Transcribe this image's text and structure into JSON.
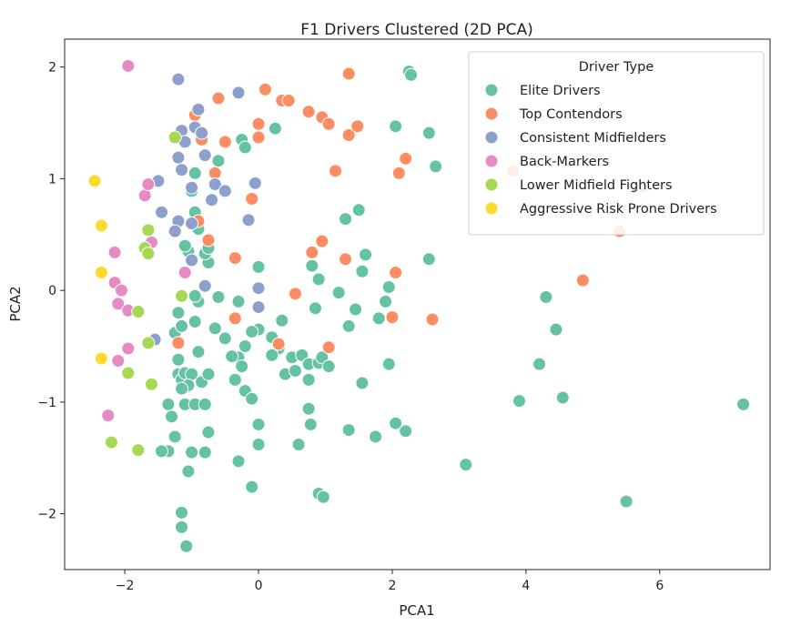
{
  "chart_data": {
    "type": "scatter",
    "title": "F1 Drivers Clustered (2D PCA)",
    "xlabel": "PCA1",
    "ylabel": "PCA2",
    "xlim": [
      -2.9,
      7.65
    ],
    "ylim": [
      -2.5,
      2.25
    ],
    "xticks": [
      -2,
      0,
      2,
      4,
      6
    ],
    "yticks": [
      -2,
      -1,
      0,
      1,
      2
    ],
    "xtick_labels": [
      "−2",
      "0",
      "2",
      "4",
      "6"
    ],
    "ytick_labels": [
      "−2",
      "−1",
      "0",
      "1",
      "2"
    ],
    "grid": false,
    "legend": {
      "title": "Driver Type",
      "placement": "top-right"
    },
    "series": [
      {
        "name": "Elite Drivers",
        "color": "#66c2a5",
        "points": [
          [
            2.25,
            1.96
          ],
          [
            2.28,
            1.93
          ],
          [
            2.55,
            1.41
          ],
          [
            2.65,
            1.11
          ],
          [
            2.05,
            1.47
          ],
          [
            0.25,
            1.45
          ],
          [
            -0.25,
            1.35
          ],
          [
            -0.2,
            1.28
          ],
          [
            -0.6,
            1.16
          ],
          [
            1.3,
            0.64
          ],
          [
            1.5,
            0.72
          ],
          [
            1.6,
            0.32
          ],
          [
            1.55,
            0.17
          ],
          [
            2.55,
            0.28
          ],
          [
            0.0,
            0.21
          ],
          [
            0.8,
            0.22
          ],
          [
            0.9,
            0.1
          ],
          [
            1.2,
            -0.02
          ],
          [
            1.95,
            0.03
          ],
          [
            1.9,
            -0.1
          ],
          [
            0.85,
            -0.16
          ],
          [
            1.45,
            -0.17
          ],
          [
            1.35,
            -0.32
          ],
          [
            1.8,
            -0.25
          ],
          [
            4.3,
            -0.06
          ],
          [
            4.45,
            -0.35
          ],
          [
            4.2,
            -0.66
          ],
          [
            -0.3,
            -0.1
          ],
          [
            -0.6,
            -0.06
          ],
          [
            0.0,
            -0.35
          ],
          [
            -0.1,
            -0.37
          ],
          [
            0.2,
            -0.42
          ],
          [
            0.35,
            -0.27
          ],
          [
            0.3,
            -0.52
          ],
          [
            0.2,
            -0.58
          ],
          [
            0.5,
            -0.6
          ],
          [
            0.65,
            -0.58
          ],
          [
            0.75,
            -0.66
          ],
          [
            0.4,
            -0.75
          ],
          [
            0.55,
            -0.72
          ],
          [
            0.9,
            -0.65
          ],
          [
            0.95,
            -0.6
          ],
          [
            1.05,
            -0.68
          ],
          [
            0.75,
            -0.8
          ],
          [
            -0.2,
            -0.5
          ],
          [
            -0.3,
            -0.6
          ],
          [
            -0.4,
            -0.59
          ],
          [
            -0.5,
            -0.43
          ],
          [
            -0.65,
            -0.34
          ],
          [
            -0.35,
            -0.8
          ],
          [
            -0.25,
            -0.68
          ],
          [
            -0.2,
            -0.9
          ],
          [
            -0.1,
            -0.97
          ],
          [
            0.75,
            -1.06
          ],
          [
            0.78,
            -1.2
          ],
          [
            1.35,
            -1.25
          ],
          [
            1.75,
            -1.31
          ],
          [
            2.05,
            -1.19
          ],
          [
            2.2,
            -1.26
          ],
          [
            1.55,
            -0.83
          ],
          [
            1.95,
            -0.66
          ],
          [
            -0.0,
            -1.2
          ],
          [
            0.0,
            -1.38
          ],
          [
            0.6,
            -1.38
          ],
          [
            -0.3,
            -1.53
          ],
          [
            -0.1,
            -1.76
          ],
          [
            0.9,
            -1.82
          ],
          [
            0.97,
            -1.85
          ],
          [
            3.1,
            -1.56
          ],
          [
            3.9,
            -0.99
          ],
          [
            4.55,
            -0.96
          ],
          [
            5.5,
            -1.89
          ],
          [
            7.25,
            -1.02
          ],
          [
            5.75,
            0.93
          ],
          [
            -1.25,
            -0.38
          ],
          [
            -1.2,
            -0.62
          ],
          [
            -1.2,
            -0.75
          ],
          [
            -1.15,
            -0.8
          ],
          [
            -1.1,
            -0.74
          ],
          [
            -1.0,
            -0.75
          ],
          [
            -1.05,
            -0.85
          ],
          [
            -1.15,
            -0.88
          ],
          [
            -0.85,
            -0.82
          ],
          [
            -0.75,
            -0.75
          ],
          [
            -0.9,
            -0.55
          ],
          [
            -0.95,
            -0.28
          ],
          [
            -1.15,
            -0.32
          ],
          [
            -1.2,
            -0.2
          ],
          [
            -0.9,
            -0.1
          ],
          [
            -0.95,
            -0.05
          ],
          [
            -1.35,
            -1.02
          ],
          [
            -1.3,
            -1.13
          ],
          [
            -1.1,
            -1.02
          ],
          [
            -0.95,
            -1.02
          ],
          [
            -0.8,
            -1.02
          ],
          [
            -1.25,
            -1.31
          ],
          [
            -1.0,
            -1.45
          ],
          [
            -1.35,
            -1.44
          ],
          [
            -1.45,
            -1.44
          ],
          [
            -0.8,
            -1.45
          ],
          [
            -0.75,
            -1.27
          ],
          [
            -1.05,
            -1.62
          ],
          [
            -1.15,
            -1.99
          ],
          [
            -1.15,
            -2.12
          ],
          [
            -1.08,
            -2.29
          ],
          [
            -0.75,
            0.25
          ],
          [
            -0.8,
            0.33
          ],
          [
            -0.75,
            0.38
          ],
          [
            -1.05,
            0.35
          ],
          [
            -1.1,
            0.4
          ],
          [
            -0.9,
            0.55
          ],
          [
            -0.95,
            0.7
          ],
          [
            -1.0,
            0.89
          ],
          [
            -0.95,
            1.05
          ]
        ]
      },
      {
        "name": "Top Contendors",
        "color": "#fc8d62",
        "points": [
          [
            0.1,
            1.8
          ],
          [
            -0.6,
            1.72
          ],
          [
            0.35,
            1.7
          ],
          [
            0.45,
            1.7
          ],
          [
            0.75,
            1.6
          ],
          [
            0.95,
            1.55
          ],
          [
            1.05,
            1.49
          ],
          [
            1.35,
            1.39
          ],
          [
            1.48,
            1.47
          ],
          [
            1.35,
            1.94
          ],
          [
            -0.95,
            1.57
          ],
          [
            -0.85,
            1.35
          ],
          [
            -0.5,
            1.33
          ],
          [
            0.0,
            1.49
          ],
          [
            0.0,
            1.37
          ],
          [
            -0.65,
            1.05
          ],
          [
            -0.9,
            0.62
          ],
          [
            -0.75,
            0.45
          ],
          [
            -0.1,
            0.82
          ],
          [
            -0.35,
            0.29
          ],
          [
            1.15,
            1.07
          ],
          [
            2.1,
            1.05
          ],
          [
            2.2,
            1.18
          ],
          [
            0.95,
            0.44
          ],
          [
            0.8,
            0.34
          ],
          [
            1.3,
            0.28
          ],
          [
            2.05,
            0.16
          ],
          [
            2.0,
            -0.24
          ],
          [
            2.6,
            -0.26
          ],
          [
            0.55,
            -0.03
          ],
          [
            3.8,
            1.07
          ],
          [
            5.4,
            0.53
          ],
          [
            4.85,
            0.09
          ],
          [
            1.05,
            -0.51
          ],
          [
            0.3,
            -0.48
          ],
          [
            -0.35,
            -0.25
          ],
          [
            -1.2,
            -0.47
          ]
        ]
      },
      {
        "name": "Consistent Midfielders",
        "color": "#8da0cb",
        "points": [
          [
            -1.2,
            1.89
          ],
          [
            -0.3,
            1.77
          ],
          [
            -0.9,
            1.62
          ],
          [
            -0.95,
            1.46
          ],
          [
            -1.15,
            1.43
          ],
          [
            -1.1,
            1.33
          ],
          [
            -0.85,
            1.41
          ],
          [
            -0.8,
            1.21
          ],
          [
            -1.2,
            1.19
          ],
          [
            -1.15,
            1.08
          ],
          [
            -1.5,
            0.98
          ],
          [
            -1.0,
            0.92
          ],
          [
            -0.65,
            0.95
          ],
          [
            -0.5,
            0.89
          ],
          [
            -0.7,
            0.81
          ],
          [
            -0.05,
            0.96
          ],
          [
            -1.2,
            0.62
          ],
          [
            -1.45,
            0.7
          ],
          [
            -1.25,
            0.53
          ],
          [
            -1.0,
            0.6
          ],
          [
            -0.15,
            0.63
          ],
          [
            -1.0,
            0.27
          ],
          [
            -0.8,
            0.04
          ],
          [
            0.0,
            0.02
          ],
          [
            0.0,
            -0.15
          ],
          [
            -1.55,
            -0.44
          ]
        ]
      },
      {
        "name": "Back-Markers",
        "color": "#e78ac3",
        "points": [
          [
            -1.95,
            2.01
          ],
          [
            -1.7,
            0.85
          ],
          [
            -1.65,
            0.95
          ],
          [
            -2.15,
            0.34
          ],
          [
            -1.6,
            0.43
          ],
          [
            -2.15,
            0.07
          ],
          [
            -2.05,
            0.0
          ],
          [
            -2.1,
            -0.12
          ],
          [
            -1.95,
            -0.18
          ],
          [
            -1.1,
            0.16
          ],
          [
            -1.95,
            -0.52
          ],
          [
            -2.1,
            -0.63
          ],
          [
            -2.25,
            -1.12
          ]
        ]
      },
      {
        "name": "Lower Midfield Fighters",
        "color": "#a6d854",
        "points": [
          [
            -1.25,
            1.37
          ],
          [
            -1.65,
            0.54
          ],
          [
            -1.7,
            0.38
          ],
          [
            -1.65,
            0.33
          ],
          [
            -1.15,
            -0.05
          ],
          [
            -1.8,
            -0.19
          ],
          [
            -1.65,
            -0.47
          ],
          [
            -1.95,
            -0.74
          ],
          [
            -1.6,
            -0.84
          ],
          [
            -1.8,
            -1.43
          ],
          [
            -2.2,
            -1.36
          ]
        ]
      },
      {
        "name": "Aggressive Risk Prone Drivers",
        "color": "#ffd92f",
        "points": [
          [
            -2.45,
            0.98
          ],
          [
            -2.35,
            0.58
          ],
          [
            -2.35,
            0.16
          ],
          [
            -2.35,
            -0.61
          ]
        ]
      }
    ]
  }
}
